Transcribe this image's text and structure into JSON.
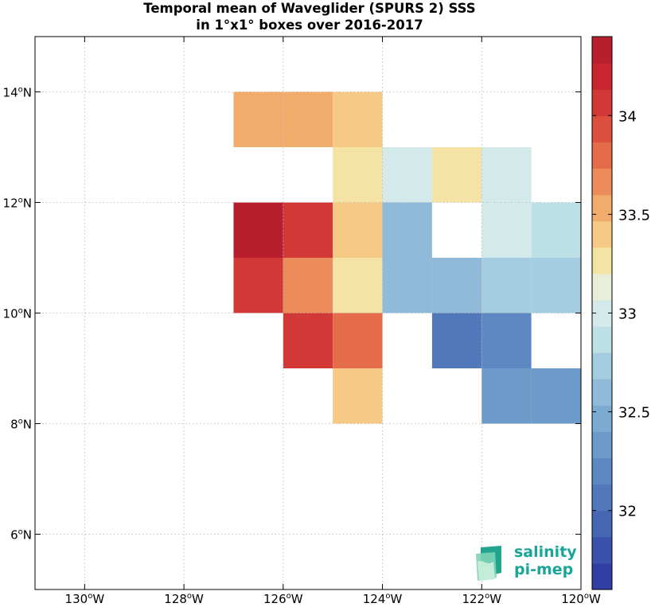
{
  "title": {
    "line1": "Temporal mean of Waveglider (SPURS 2) SSS",
    "line2": "in 1°x1° boxes over 2016-2017"
  },
  "logo": {
    "line1": "salinity",
    "line2": "pi-mep"
  },
  "chart_data": {
    "type": "heatmap",
    "title": "Temporal mean of Waveglider (SPURS 2) SSS in 1°x1° boxes over 2016-2017",
    "xlim": [
      -131,
      -120
    ],
    "ylim": [
      5,
      15
    ],
    "x_ticks": [
      {
        "value": -130,
        "label": "130",
        "hemi": "W"
      },
      {
        "value": -128,
        "label": "128",
        "hemi": "W"
      },
      {
        "value": -126,
        "label": "126",
        "hemi": "W"
      },
      {
        "value": -124,
        "label": "124",
        "hemi": "W"
      },
      {
        "value": -122,
        "label": "122",
        "hemi": "W"
      },
      {
        "value": -120,
        "label": "120",
        "hemi": "W"
      }
    ],
    "y_ticks": [
      {
        "value": 6,
        "label": "6",
        "hemi": "N"
      },
      {
        "value": 8,
        "label": "8",
        "hemi": "N"
      },
      {
        "value": 10,
        "label": "10",
        "hemi": "N"
      },
      {
        "value": 12,
        "label": "12",
        "hemi": "N"
      },
      {
        "value": 14,
        "label": "14",
        "hemi": "N"
      }
    ],
    "grid": true,
    "colorbar": {
      "range": [
        31.6,
        34.4
      ],
      "step": 0.1333,
      "ticks": [
        32,
        32.5,
        33,
        33.5,
        34
      ],
      "tick_labels": [
        "32",
        "32.5",
        "33",
        "33.5",
        "34"
      ],
      "colors": [
        "#313ea3",
        "#3b52ac",
        "#4567b2",
        "#5078bb",
        "#5d88c1",
        "#6c9ac9",
        "#7cabd1",
        "#8fbad9",
        "#a5cde1",
        "#bde0e6",
        "#d4e9ea",
        "#e9eed9",
        "#f5e3a5",
        "#f6c984",
        "#f1ac6c",
        "#ec8c5a",
        "#e46c4b",
        "#dc4f3e",
        "#d23835",
        "#c7262f",
        "#b81f2e"
      ]
    },
    "cells": [
      {
        "lon": -127,
        "lat": 13,
        "value": 33.55
      },
      {
        "lon": -126,
        "lat": 13,
        "value": 33.55
      },
      {
        "lon": -125,
        "lat": 13,
        "value": 33.35
      },
      {
        "lon": -125,
        "lat": 12,
        "value": 33.22
      },
      {
        "lon": -124,
        "lat": 12,
        "value": 33.02
      },
      {
        "lon": -123,
        "lat": 12,
        "value": 33.2
      },
      {
        "lon": -122,
        "lat": 12,
        "value": 33.02
      },
      {
        "lon": -127,
        "lat": 11,
        "value": 34.3
      },
      {
        "lon": -126,
        "lat": 11,
        "value": 34.0
      },
      {
        "lon": -125,
        "lat": 11,
        "value": 33.4
      },
      {
        "lon": -124,
        "lat": 11,
        "value": 32.62
      },
      {
        "lon": -122,
        "lat": 11,
        "value": 33.02
      },
      {
        "lon": -121,
        "lat": 11,
        "value": 32.9
      },
      {
        "lon": -127,
        "lat": 10,
        "value": 34.05
      },
      {
        "lon": -126,
        "lat": 10,
        "value": 33.7
      },
      {
        "lon": -125,
        "lat": 10,
        "value": 33.2
      },
      {
        "lon": -124,
        "lat": 10,
        "value": 32.62
      },
      {
        "lon": -123,
        "lat": 10,
        "value": 32.62
      },
      {
        "lon": -122,
        "lat": 10,
        "value": 32.75
      },
      {
        "lon": -121,
        "lat": 10,
        "value": 32.75
      },
      {
        "lon": -126,
        "lat": 9,
        "value": 34.05
      },
      {
        "lon": -125,
        "lat": 9,
        "value": 33.85
      },
      {
        "lon": -123,
        "lat": 9,
        "value": 32.1
      },
      {
        "lon": -122,
        "lat": 9,
        "value": 32.2
      },
      {
        "lon": -122,
        "lat": 8,
        "value": 32.3
      },
      {
        "lon": -121,
        "lat": 8,
        "value": 32.3
      },
      {
        "lon": -125,
        "lat": 8,
        "value": 33.35
      }
    ]
  }
}
